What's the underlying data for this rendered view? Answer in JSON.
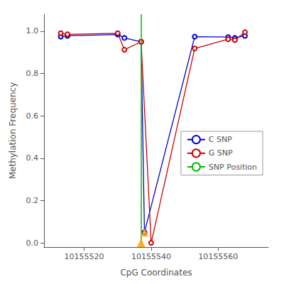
{
  "chart_data": {
    "type": "line",
    "xlabel": "CpG Coordinates",
    "ylabel": "Methylation Frequency",
    "xlim": [
      10155508,
      10155575
    ],
    "ylim": [
      -0.02,
      1.08
    ],
    "xticks": [
      10155520,
      10155540,
      10155560
    ],
    "yticks": [
      {
        "value": 0.0,
        "label": "0.0"
      },
      0.2,
      0.4,
      0.6,
      0.8,
      {
        "value": 1.0,
        "label": "1.0"
      }
    ],
    "grid": false,
    "legend": "right",
    "series": [
      {
        "name": "C SNP",
        "type": "line",
        "marker": "circle",
        "color": "#0000cc",
        "x": [
          10155513,
          10155515,
          10155530,
          10155532,
          10155537,
          10155538,
          10155553,
          10155563,
          10155565,
          10155568
        ],
        "values": [
          0.974,
          0.978,
          0.984,
          0.968,
          0.95,
          0.05,
          0.974,
          0.972,
          0.968,
          0.978
        ]
      },
      {
        "name": "G SNP",
        "type": "line",
        "marker": "circle",
        "color": "#cc0000",
        "x": [
          10155513,
          10155515,
          10155530,
          10155532,
          10155537,
          10155540,
          10155553,
          10155563,
          10155565,
          10155568
        ],
        "values": [
          0.99,
          0.985,
          0.99,
          0.912,
          0.95,
          0.0,
          0.918,
          0.962,
          0.958,
          0.995
        ]
      },
      {
        "name": "SNP Position",
        "type": "vline",
        "color": "#00bb00",
        "x": 10155537
      },
      {
        "type": "scatter",
        "marker": "triangle",
        "color": "#FFA500",
        "x": [
          10155538,
          10155537
        ],
        "values": [
          0.05,
          0.0
        ]
      }
    ]
  }
}
